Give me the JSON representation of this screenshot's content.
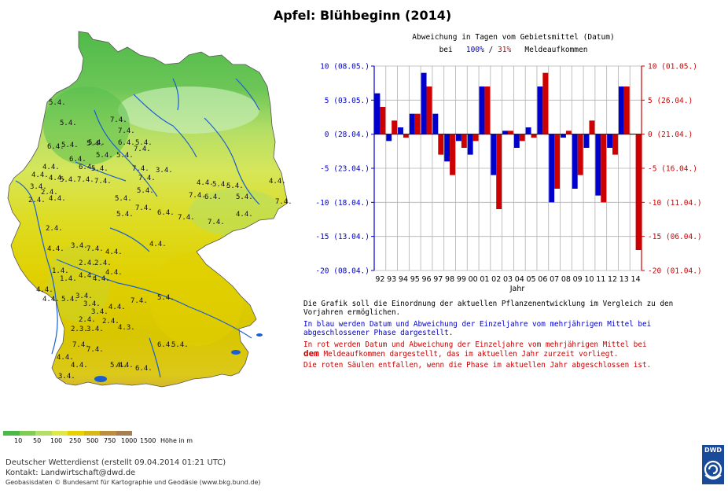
{
  "title": "Apfel: Blühbeginn (2014)",
  "map": {
    "labels": [
      {
        "t": "5.4.",
        "x": 62,
        "y": 96
      },
      {
        "t": "5.4.",
        "x": 76,
        "y": 122
      },
      {
        "t": "7.4.",
        "x": 140,
        "y": 118
      },
      {
        "t": "5.4.",
        "x": 110,
        "y": 148
      },
      {
        "t": "7.4.",
        "x": 150,
        "y": 132
      },
      {
        "t": "6.4.",
        "x": 60,
        "y": 152
      },
      {
        "t": "5.4.",
        "x": 78,
        "y": 150
      },
      {
        "t": "5.4.",
        "x": 112,
        "y": 147
      },
      {
        "t": "6.4.",
        "x": 150,
        "y": 147
      },
      {
        "t": "5.4.",
        "x": 172,
        "y": 147
      },
      {
        "t": "7.4.",
        "x": 170,
        "y": 155
      },
      {
        "t": "6.4.",
        "x": 88,
        "y": 168
      },
      {
        "t": "5.4.",
        "x": 122,
        "y": 163
      },
      {
        "t": "5.4.",
        "x": 148,
        "y": 163
      },
      {
        "t": "4.4.",
        "x": 54,
        "y": 178
      },
      {
        "t": "4.4.",
        "x": 40,
        "y": 188
      },
      {
        "t": "6.4.",
        "x": 100,
        "y": 178
      },
      {
        "t": "5.4.",
        "x": 116,
        "y": 180
      },
      {
        "t": "7.4.",
        "x": 168,
        "y": 180
      },
      {
        "t": "3.4.",
        "x": 198,
        "y": 182
      },
      {
        "t": "4.4.",
        "x": 62,
        "y": 192
      },
      {
        "t": "5.4.",
        "x": 76,
        "y": 194
      },
      {
        "t": "7.4.",
        "x": 120,
        "y": 196
      },
      {
        "t": "7.4.",
        "x": 176,
        "y": 192
      },
      {
        "t": "3.4.",
        "x": 38,
        "y": 203
      },
      {
        "t": "2.4.",
        "x": 52,
        "y": 210
      },
      {
        "t": "7.4.",
        "x": 98,
        "y": 194
      },
      {
        "t": "4.4.",
        "x": 250,
        "y": 198
      },
      {
        "t": "5.4.",
        "x": 270,
        "y": 200
      },
      {
        "t": "5.4.",
        "x": 288,
        "y": 202
      },
      {
        "t": "4.4.",
        "x": 342,
        "y": 196
      },
      {
        "t": "2.4.",
        "x": 36,
        "y": 220
      },
      {
        "t": "4.4.",
        "x": 62,
        "y": 218
      },
      {
        "t": "5.4.",
        "x": 174,
        "y": 208
      },
      {
        "t": "7.4.",
        "x": 240,
        "y": 214
      },
      {
        "t": "6.4.",
        "x": 260,
        "y": 216
      },
      {
        "t": "5.4.",
        "x": 300,
        "y": 216
      },
      {
        "t": "5.4.",
        "x": 146,
        "y": 218
      },
      {
        "t": "7.4.",
        "x": 350,
        "y": 222
      },
      {
        "t": "5.4.",
        "x": 148,
        "y": 238
      },
      {
        "t": "7.4.",
        "x": 172,
        "y": 230
      },
      {
        "t": "6.4.",
        "x": 200,
        "y": 236
      },
      {
        "t": "7.4.",
        "x": 226,
        "y": 242
      },
      {
        "t": "7.4.",
        "x": 264,
        "y": 248
      },
      {
        "t": "4.4.",
        "x": 300,
        "y": 238
      },
      {
        "t": "2.4.",
        "x": 58,
        "y": 256
      },
      {
        "t": "4.4.",
        "x": 60,
        "y": 282
      },
      {
        "t": "3.4.",
        "x": 90,
        "y": 278
      },
      {
        "t": "7.4.",
        "x": 110,
        "y": 282
      },
      {
        "t": "4.4.",
        "x": 134,
        "y": 286
      },
      {
        "t": "4.4.",
        "x": 190,
        "y": 276
      },
      {
        "t": "1.4.",
        "x": 66,
        "y": 310
      },
      {
        "t": "1.4.",
        "x": 76,
        "y": 320
      },
      {
        "t": "2.4.",
        "x": 100,
        "y": 300
      },
      {
        "t": "2.4.",
        "x": 120,
        "y": 300
      },
      {
        "t": "4.4.",
        "x": 100,
        "y": 316
      },
      {
        "t": "4.4.",
        "x": 118,
        "y": 320
      },
      {
        "t": "4.4.",
        "x": 134,
        "y": 312
      },
      {
        "t": "4.4.",
        "x": 46,
        "y": 334
      },
      {
        "t": "4.4.",
        "x": 54,
        "y": 346
      },
      {
        "t": "5.4.",
        "x": 78,
        "y": 346
      },
      {
        "t": "3.4.",
        "x": 96,
        "y": 342
      },
      {
        "t": "3.4.",
        "x": 106,
        "y": 352
      },
      {
        "t": "3.4.",
        "x": 116,
        "y": 362
      },
      {
        "t": "4.4.",
        "x": 138,
        "y": 356
      },
      {
        "t": "7.4.",
        "x": 166,
        "y": 348
      },
      {
        "t": "5.4.",
        "x": 200,
        "y": 344
      },
      {
        "t": "2.4.",
        "x": 100,
        "y": 372
      },
      {
        "t": "2.4.",
        "x": 130,
        "y": 374
      },
      {
        "t": "2.3.",
        "x": 90,
        "y": 384
      },
      {
        "t": "3.4.",
        "x": 110,
        "y": 384
      },
      {
        "t": "4.3.",
        "x": 150,
        "y": 382
      },
      {
        "t": "7.4.",
        "x": 92,
        "y": 404
      },
      {
        "t": "7.4.",
        "x": 110,
        "y": 410
      },
      {
        "t": "6.4.",
        "x": 200,
        "y": 404
      },
      {
        "t": "5.4.",
        "x": 218,
        "y": 404
      },
      {
        "t": "4.4.",
        "x": 72,
        "y": 420
      },
      {
        "t": "4.4.",
        "x": 90,
        "y": 430
      },
      {
        "t": "5.4.",
        "x": 140,
        "y": 430
      },
      {
        "t": "4.4.",
        "x": 148,
        "y": 430
      },
      {
        "t": "6.4.",
        "x": 172,
        "y": 434
      },
      {
        "t": "3.4.",
        "x": 74,
        "y": 444
      }
    ]
  },
  "legend": {
    "ticks": [
      "10",
      "50",
      "100",
      "250",
      "500",
      "750",
      "1000",
      "1500"
    ],
    "unit": "Höhe in m",
    "colors": [
      "#4cb848",
      "#80cc55",
      "#b4de66",
      "#dfe84a",
      "#e6d200",
      "#d8b818",
      "#bc8e40",
      "#a57e52"
    ]
  },
  "chart_heading": {
    "line1": "Abweichung in Tagen vom Gebietsmittel (Datum)",
    "line2_prefix": "bei",
    "line2_blue": "100%",
    "line2_sep": "/",
    "line2_red": "31%",
    "line2_suffix": "Meldeaufkommen"
  },
  "chart_data": {
    "type": "bar",
    "categories": [
      "92",
      "93",
      "94",
      "95",
      "96",
      "97",
      "98",
      "99",
      "00",
      "01",
      "02",
      "03",
      "04",
      "05",
      "06",
      "07",
      "08",
      "09",
      "10",
      "11",
      "12",
      "13",
      "14"
    ],
    "xlabel": "Jahr",
    "ylim": [
      -20,
      10
    ],
    "yticks": [
      10,
      5,
      0,
      -5,
      -10,
      -15,
      -20
    ],
    "yticklabels_left": [
      "10 (08.05.)",
      "5 (03.05.)",
      "0 (28.04.)",
      "-5 (23.04.)",
      "-10 (18.04.)",
      "-15 (13.04.)",
      "-20 (08.04.)"
    ],
    "yticklabels_right": [
      "10 (01.05.)",
      "5 (26.04.)",
      "0 (21.04.)",
      "-5 (16.04.)",
      "-10 (11.04.)",
      "-15 (06.04.)",
      "-20 (01.04.)"
    ],
    "grid": true,
    "series": [
      {
        "color": "#0000cc",
        "values": [
          6,
          -1,
          1,
          3,
          9,
          3,
          -4,
          -1,
          -3,
          7,
          -6,
          0.5,
          -2,
          1,
          7,
          -10,
          -0.5,
          -8,
          -2,
          -9,
          -2,
          7,
          null
        ]
      },
      {
        "color": "#cc0000",
        "values": [
          4,
          2,
          -0.5,
          3,
          7,
          -3,
          -6,
          -2,
          -1,
          7,
          -11,
          0.5,
          -1,
          -0.5,
          9,
          -8,
          0.5,
          -6,
          2,
          -10,
          -3,
          7,
          -17
        ]
      }
    ]
  },
  "description": {
    "p1": "Die Grafik soll die Einordnung der aktuellen Pflanzenentwicklung im Vergleich zu den Vorjahren ermöglichen.",
    "p2": "In blau werden Datum und Abweichung der Einzeljahre vom mehrjährigen Mittel bei abgeschlossener Phase dargestellt.",
    "p3a": "In rot werden Datum und Abweichung der Einzeljahre vom mehrjährigen Mittel bei",
    "p3b_bold": "dem",
    "p3c": "Meldeaufkommen dargestellt, das im aktuellen Jahr zurzeit vorliegt.",
    "p4": "Die roten Säulen entfallen, wenn die Phase im aktuellen Jahr abgeschlossen ist."
  },
  "footer": {
    "line1": "Deutscher Wetterdienst (erstellt 09.04.2014 01:21 UTC)",
    "line2": "Kontakt: Landwirtschaft@dwd.de",
    "line3": "Geobasisdaten © Bundesamt für Kartographie und Geodäsie (www.bkg.bund.de)"
  },
  "logo": {
    "text": "DWD"
  }
}
